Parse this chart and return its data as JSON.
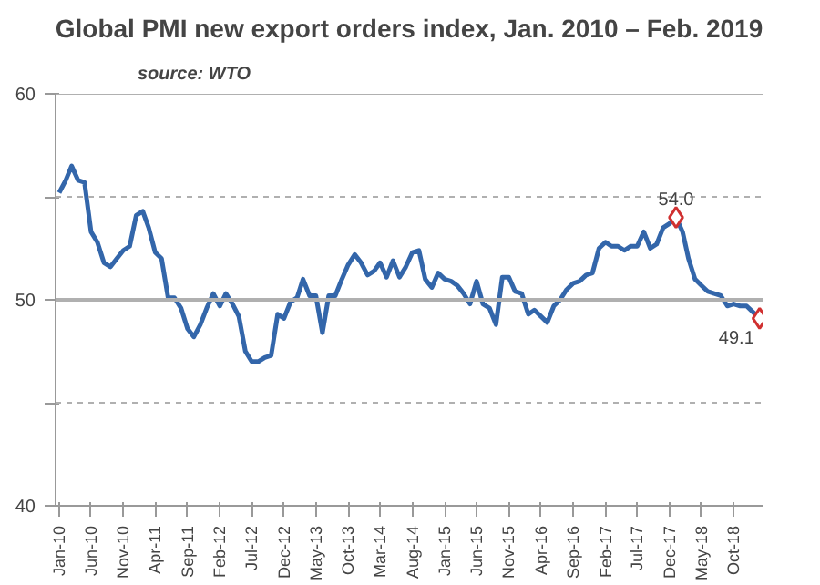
{
  "chart_data": {
    "type": "line",
    "title": "Global PMI new export orders index, Jan. 2010 – Feb. 2019",
    "subtitle": "source: WTO",
    "x": [
      "2010-01",
      "2010-02",
      "2010-03",
      "2010-04",
      "2010-05",
      "2010-06",
      "2010-07",
      "2010-08",
      "2010-09",
      "2010-10",
      "2010-11",
      "2010-12",
      "2011-01",
      "2011-02",
      "2011-03",
      "2011-04",
      "2011-05",
      "2011-06",
      "2011-07",
      "2011-08",
      "2011-09",
      "2011-10",
      "2011-11",
      "2011-12",
      "2012-01",
      "2012-02",
      "2012-03",
      "2012-04",
      "2012-05",
      "2012-06",
      "2012-07",
      "2012-08",
      "2012-09",
      "2012-10",
      "2012-11",
      "2012-12",
      "2013-01",
      "2013-02",
      "2013-03",
      "2013-04",
      "2013-05",
      "2013-06",
      "2013-07",
      "2013-08",
      "2013-09",
      "2013-10",
      "2013-11",
      "2013-12",
      "2014-01",
      "2014-02",
      "2014-03",
      "2014-04",
      "2014-05",
      "2014-06",
      "2014-07",
      "2014-08",
      "2014-09",
      "2014-10",
      "2014-11",
      "2014-12",
      "2015-01",
      "2015-02",
      "2015-03",
      "2015-04",
      "2015-05",
      "2015-06",
      "2015-07",
      "2015-08",
      "2015-09",
      "2015-10",
      "2015-11",
      "2015-12",
      "2016-01",
      "2016-02",
      "2016-03",
      "2016-04",
      "2016-05",
      "2016-06",
      "2016-07",
      "2016-08",
      "2016-09",
      "2016-10",
      "2016-11",
      "2016-12",
      "2017-01",
      "2017-02",
      "2017-03",
      "2017-04",
      "2017-05",
      "2017-06",
      "2017-07",
      "2017-08",
      "2017-09",
      "2017-10",
      "2017-11",
      "2017-12",
      "2018-01",
      "2018-02",
      "2018-03",
      "2018-04",
      "2018-05",
      "2018-06",
      "2018-07",
      "2018-08",
      "2018-09",
      "2018-10",
      "2018-11",
      "2018-12",
      "2019-01",
      "2019-02"
    ],
    "series": [
      {
        "color": "#3366aa",
        "values": [
          55.2,
          55.8,
          56.5,
          55.8,
          55.7,
          53.3,
          52.8,
          51.8,
          51.6,
          52.0,
          52.4,
          52.6,
          54.1,
          54.3,
          53.5,
          52.3,
          52.0,
          50.1,
          50.1,
          49.6,
          48.6,
          48.2,
          48.8,
          49.6,
          50.3,
          49.7,
          50.3,
          49.8,
          49.2,
          47.5,
          47.0,
          47.0,
          47.2,
          47.3,
          49.3,
          49.1,
          49.9,
          50.1,
          51.0,
          50.2,
          50.2,
          48.4,
          50.2,
          50.2,
          51.0,
          51.7,
          52.2,
          51.8,
          51.2,
          51.4,
          51.8,
          51.1,
          51.9,
          51.1,
          51.6,
          52.3,
          52.4,
          51.0,
          50.6,
          51.3,
          51.0,
          50.9,
          50.7,
          50.3,
          49.8,
          50.9,
          49.8,
          49.6,
          48.8,
          51.1,
          51.1,
          50.4,
          50.3,
          49.3,
          49.5,
          49.2,
          48.9,
          49.7,
          50.0,
          50.5,
          50.8,
          50.9,
          51.2,
          51.3,
          52.5,
          52.8,
          52.6,
          52.6,
          52.4,
          52.6,
          52.6,
          53.3,
          52.5,
          52.7,
          53.5,
          53.7,
          54.0,
          53.3,
          52.0,
          51.0,
          50.7,
          50.4,
          50.3,
          50.2,
          49.7,
          49.8,
          49.7,
          49.7,
          49.4,
          49.1
        ]
      }
    ],
    "marker": "none",
    "line_style": "solid",
    "annotations": [
      {
        "text": "54.0",
        "x": "2018-01",
        "y": 54.0
      },
      {
        "text": "49.1",
        "x": "2019-02",
        "y": 49.1
      }
    ],
    "xlim": [
      "2009-12-15",
      "2019-02-15"
    ],
    "xticks": [
      {
        "value": "2010-01",
        "label": "Jan-10"
      },
      {
        "value": "2010-06",
        "label": "Jun-10"
      },
      {
        "value": "2010-11",
        "label": "Nov-10"
      },
      {
        "value": "2011-04",
        "label": "Apr-11"
      },
      {
        "value": "2011-09",
        "label": "Sep-11"
      },
      {
        "value": "2012-02",
        "label": "Feb-12"
      },
      {
        "value": "2012-07",
        "label": "Jul-12"
      },
      {
        "value": "2012-12",
        "label": "Dec-12"
      },
      {
        "value": "2013-05",
        "label": "May-13"
      },
      {
        "value": "2013-10",
        "label": "Oct-13"
      },
      {
        "value": "2014-03",
        "label": "Mar-14"
      },
      {
        "value": "2014-08",
        "label": "Aug-14"
      },
      {
        "value": "2015-01",
        "label": "Jan-15"
      },
      {
        "value": "2015-06",
        "label": "Jun-15"
      },
      {
        "value": "2015-11",
        "label": "Nov-15"
      },
      {
        "value": "2016-04",
        "label": "Apr-16"
      },
      {
        "value": "2016-09",
        "label": "Sep-16"
      },
      {
        "value": "2017-02",
        "label": "Feb-17"
      },
      {
        "value": "2017-07",
        "label": "Jul-17"
      },
      {
        "value": "2017-12",
        "label": "Dec-17"
      },
      {
        "value": "2018-05",
        "label": "May-18"
      },
      {
        "value": "2018-10",
        "label": "Oct-18"
      }
    ],
    "ylim": [
      40,
      60
    ],
    "yticks": [
      40,
      {
        "value": 45,
        "label": null
      },
      50,
      {
        "value": 55,
        "label": null
      },
      60
    ],
    "ref_lines": [
      {
        "axis": "y",
        "value": 50,
        "color": "#b0b0b0",
        "line_style": "solid"
      }
    ],
    "grid": "y"
  }
}
